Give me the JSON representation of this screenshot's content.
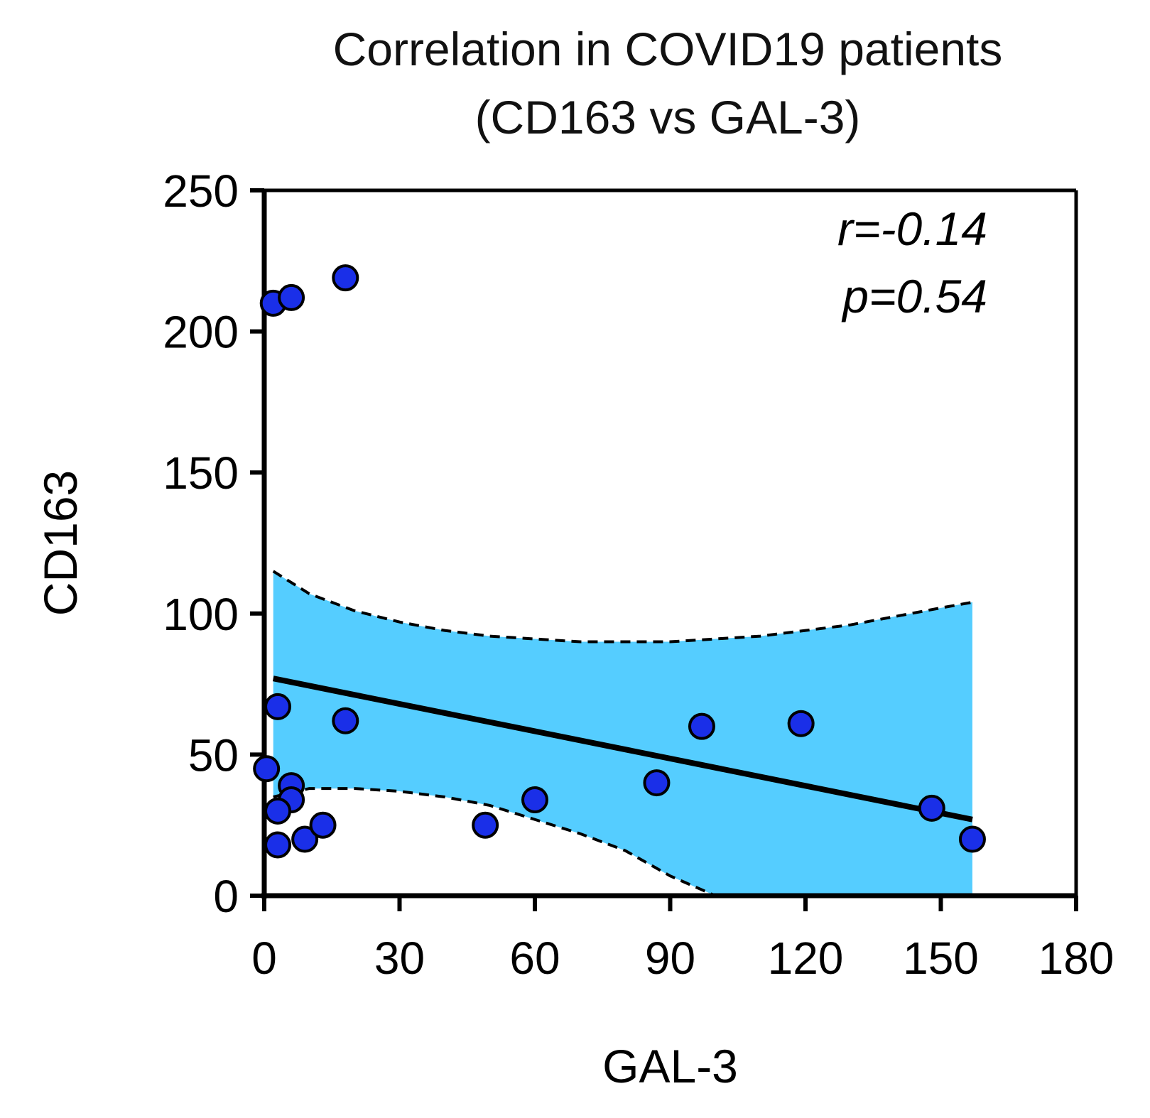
{
  "chart_data": {
    "type": "scatter",
    "title": [
      "Correlation in COVID19 patients",
      "(CD163 vs GAL-3)"
    ],
    "xlabel": "GAL-3",
    "ylabel": "CD163",
    "xlim": [
      0,
      180
    ],
    "ylim": [
      0,
      250
    ],
    "x_ticks": [
      0,
      30,
      60,
      90,
      120,
      150,
      180
    ],
    "y_ticks": [
      0,
      50,
      100,
      150,
      200,
      250
    ],
    "grid": false,
    "points": [
      {
        "x": 2,
        "y": 210
      },
      {
        "x": 6,
        "y": 212
      },
      {
        "x": 18,
        "y": 219
      },
      {
        "x": 3,
        "y": 67
      },
      {
        "x": 18,
        "y": 62
      },
      {
        "x": 0.5,
        "y": 45
      },
      {
        "x": 6,
        "y": 39
      },
      {
        "x": 6,
        "y": 34
      },
      {
        "x": 3,
        "y": 30
      },
      {
        "x": 3,
        "y": 18
      },
      {
        "x": 9,
        "y": 20
      },
      {
        "x": 13,
        "y": 25
      },
      {
        "x": 49,
        "y": 25
      },
      {
        "x": 60,
        "y": 34
      },
      {
        "x": 87,
        "y": 40
      },
      {
        "x": 97,
        "y": 60
      },
      {
        "x": 119,
        "y": 61
      },
      {
        "x": 148,
        "y": 31
      },
      {
        "x": 157,
        "y": 20
      }
    ],
    "regression": {
      "x": [
        2,
        157
      ],
      "y": [
        77,
        27
      ]
    },
    "confidence_band": {
      "x": [
        2,
        10,
        20,
        30,
        40,
        50,
        60,
        70,
        80,
        90,
        100,
        110,
        120,
        130,
        140,
        150,
        157
      ],
      "upper": [
        115,
        107,
        101,
        97,
        94,
        92,
        91,
        90,
        90,
        90,
        91,
        92,
        94,
        96,
        99,
        102,
        104
      ],
      "lower": [
        35,
        38,
        38,
        37,
        35,
        32,
        27,
        22,
        16,
        7,
        0,
        0,
        0,
        0,
        0,
        0,
        0
      ]
    },
    "annotations": {
      "r": "r=-0.14",
      "p": "p=0.54"
    },
    "colors": {
      "points": "#1a2fe8",
      "band": "#55cdff",
      "line": "#000000"
    }
  }
}
